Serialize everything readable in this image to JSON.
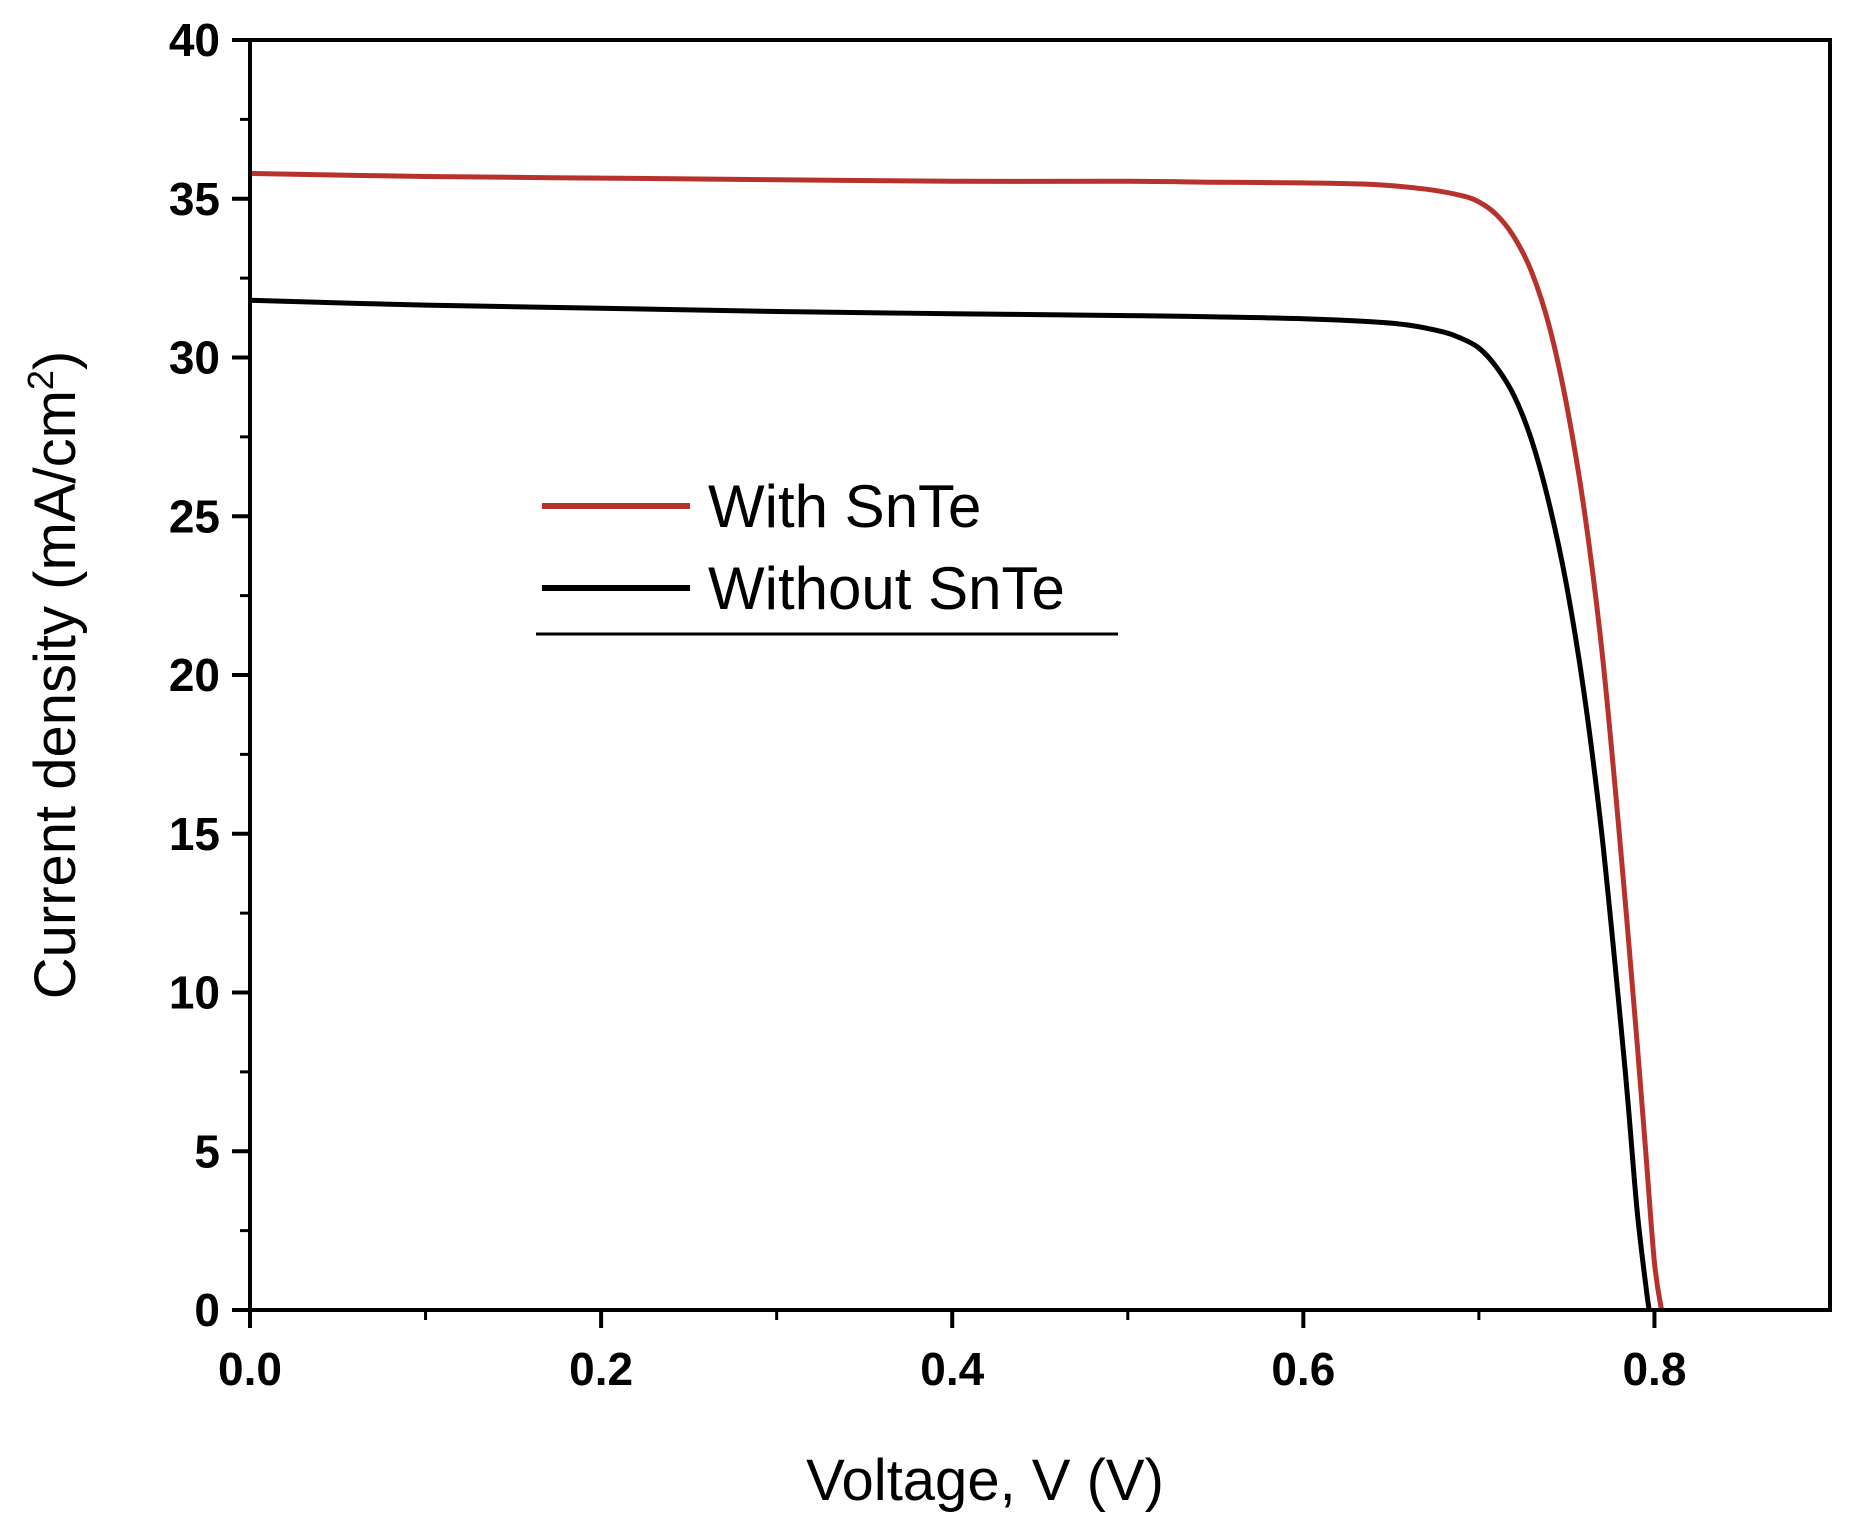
{
  "chart_data": {
    "type": "line",
    "xlabel": "Voltage, V (V)",
    "ylabel": "Current density (mA/cm²)",
    "ylabel_main": "Current density (mA/cm",
    "ylabel_sup": "2",
    "ylabel_tail": ")",
    "xlim": [
      0,
      0.9
    ],
    "ylim": [
      0,
      40
    ],
    "xticks": [
      "0.0",
      "0.2",
      "0.4",
      "0.6",
      "0.8"
    ],
    "yticks": [
      "0",
      "5",
      "10",
      "15",
      "20",
      "25",
      "30",
      "35",
      "40"
    ],
    "grid": false,
    "legend_position": "center-left",
    "series": [
      {
        "name": "With SnTe",
        "color": "#b8322d",
        "x": [
          0.0,
          0.1,
          0.2,
          0.3,
          0.4,
          0.5,
          0.55,
          0.6,
          0.64,
          0.67,
          0.69,
          0.7,
          0.71,
          0.72,
          0.73,
          0.74,
          0.75,
          0.76,
          0.77,
          0.78,
          0.79,
          0.795,
          0.8,
          0.804
        ],
        "y": [
          35.8,
          35.7,
          35.65,
          35.6,
          35.55,
          35.55,
          35.52,
          35.5,
          35.45,
          35.3,
          35.1,
          34.9,
          34.5,
          33.8,
          32.7,
          31.0,
          28.5,
          25.2,
          20.8,
          15.0,
          8.5,
          5.0,
          1.5,
          0.0
        ]
      },
      {
        "name": "Without SnTe",
        "color": "#000000",
        "x": [
          0.0,
          0.1,
          0.2,
          0.3,
          0.4,
          0.5,
          0.55,
          0.6,
          0.64,
          0.66,
          0.68,
          0.69,
          0.7,
          0.71,
          0.72,
          0.73,
          0.74,
          0.75,
          0.76,
          0.77,
          0.78,
          0.785,
          0.79,
          0.795,
          0.797
        ],
        "y": [
          31.8,
          31.65,
          31.55,
          31.45,
          31.38,
          31.32,
          31.28,
          31.22,
          31.12,
          31.02,
          30.8,
          30.6,
          30.3,
          29.7,
          28.8,
          27.4,
          25.4,
          22.8,
          19.4,
          15.0,
          9.5,
          6.5,
          3.2,
          0.8,
          0.0
        ]
      }
    ]
  }
}
